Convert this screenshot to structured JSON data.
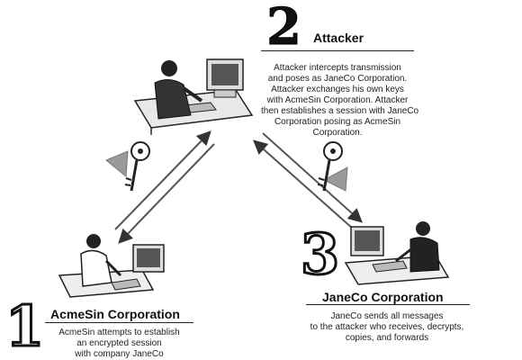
{
  "attacker": {
    "step": "2",
    "title": "Attacker",
    "description": [
      "Attacker intercepts transmission",
      "and poses as JaneCo Corporation.",
      "Attacker exchanges his own keys",
      "with AcmeSin Corporation. Attacker",
      "then establishes a session with JaneCo",
      "Corporation posing as AcmeSin",
      "Corporation."
    ]
  },
  "acmesin": {
    "step": "1",
    "title": "AcmeSin Corporation",
    "description": [
      "AcmeSin attempts to establish",
      "an encrypted session",
      "with company JaneCo"
    ]
  },
  "janeco": {
    "step": "3",
    "title": "JaneCo Corporation",
    "description": [
      "JaneCo sends all messages",
      "to the attacker who receives, decrypts,",
      "copies, and forwards"
    ]
  },
  "colors": {
    "ink": "#111111",
    "arrow": "#555555",
    "key": "#ffffff",
    "arrowhead": "#9a9a9a"
  }
}
